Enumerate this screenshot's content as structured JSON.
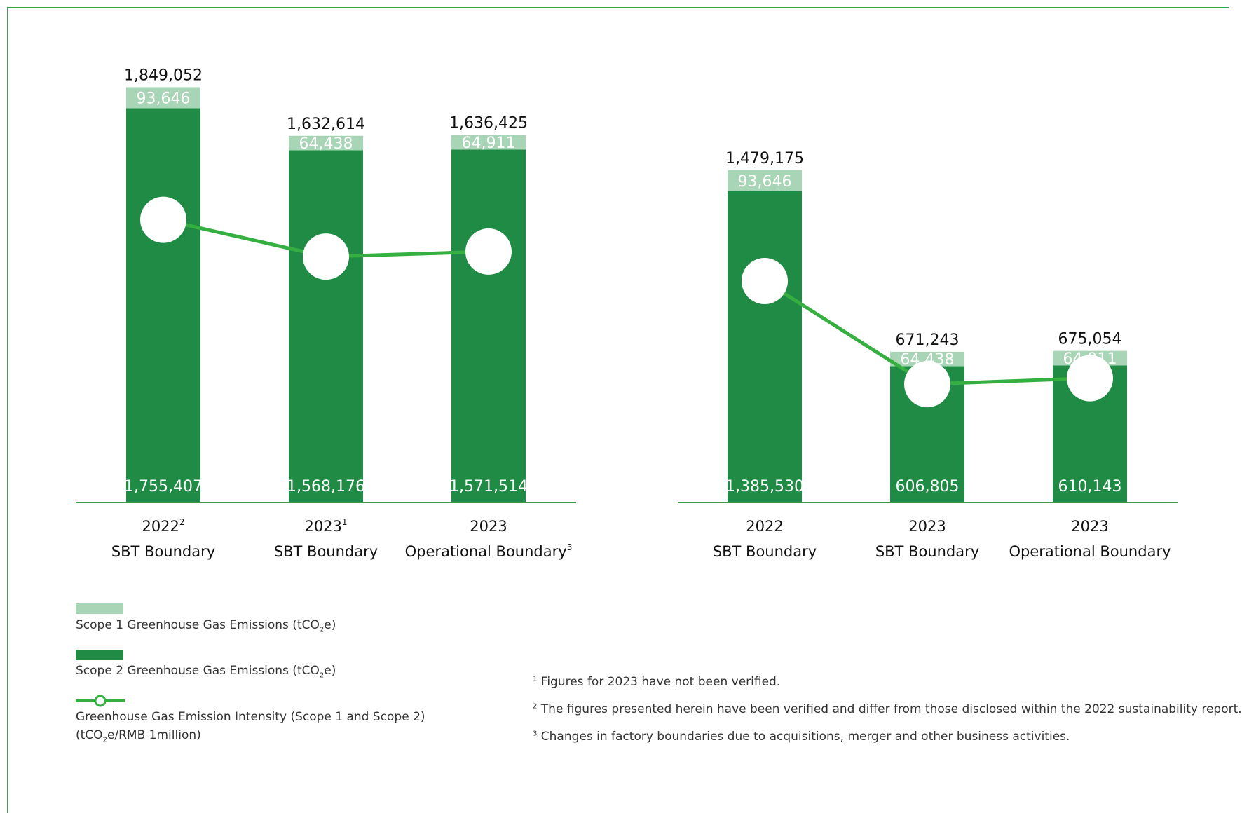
{
  "legend": {
    "scope1": {
      "pre": "Scope 1 Greenhouse Gas Emissions (tCO",
      "sub": "2",
      "post": "e)"
    },
    "scope2": {
      "pre": "Scope 2 Greenhouse Gas Emissions (tCO",
      "sub": "2",
      "post": "e)"
    },
    "intensity_line1": "Greenhouse Gas Emission Intensity (Scope 1 and Scope 2)",
    "intensity_line2": {
      "pre": "(tCO",
      "sub": "2",
      "post": "e/RMB 1million)"
    }
  },
  "footnotes": [
    {
      "mark": "1",
      "text": "Figures for 2023 have not been verified."
    },
    {
      "mark": "2",
      "text": "The figures presented herein have been verified and differ from those disclosed within the 2022 sustainability report."
    },
    {
      "mark": "3",
      "text": "Changes in factory boundaries due to acquisitions, merger and other business activities."
    }
  ],
  "colors": {
    "scope1": "#a8d5b5",
    "scope2": "#208b45",
    "intensity": "#35b040",
    "axis": "#3a9a4a"
  },
  "chart_data": [
    {
      "type": "bar",
      "stacked": true,
      "categories": [
        {
          "line1": "2022",
          "sup1": "2",
          "line2": "SBT Boundary",
          "sup2": ""
        },
        {
          "line1": "2023",
          "sup1": "1",
          "line2": "SBT Boundary",
          "sup2": ""
        },
        {
          "line1": "2023",
          "sup1": "",
          "line2": "Operational Boundary",
          "sup2": "3"
        }
      ],
      "totals": [
        "1,849,052",
        "1,632,614",
        "1,636,425"
      ],
      "series": [
        {
          "name": "Scope 2 Greenhouse Gas Emissions (tCO2e)",
          "values": [
            1755407,
            1568176,
            1571514
          ],
          "labels": [
            "1,755,407",
            "1,568,176",
            "1,571,514"
          ]
        },
        {
          "name": "Scope 1 Greenhouse Gas Emissions (tCO2e)",
          "values": [
            93646,
            64438,
            64911
          ],
          "labels": [
            "93,646",
            "64,438",
            "64,911"
          ]
        }
      ],
      "ylim": [
        0,
        2050000
      ],
      "intensity_line": {
        "name": "Greenhouse Gas Emission Intensity (Scope 1 and Scope 2) (tCO2e/RMB 1million)",
        "relative_levels": [
          0.614,
          0.534,
          0.545
        ]
      }
    },
    {
      "type": "bar",
      "stacked": true,
      "categories": [
        {
          "line1": "2022",
          "sup1": "",
          "line2": "SBT Boundary",
          "sup2": ""
        },
        {
          "line1": "2023",
          "sup1": "",
          "line2": "SBT Boundary",
          "sup2": ""
        },
        {
          "line1": "2023",
          "sup1": "",
          "line2": "Operational Boundary",
          "sup2": ""
        }
      ],
      "totals": [
        "1,479,175",
        "671,243",
        "675,054"
      ],
      "series": [
        {
          "name": "Scope 2 Greenhouse Gas Emissions (tCO2e)",
          "values": [
            1385530,
            606805,
            610143
          ],
          "labels": [
            "1,385,530",
            "606,805",
            "610,143"
          ]
        },
        {
          "name": "Scope 1 Greenhouse Gas Emissions (tCO2e)",
          "values": [
            93646,
            64438,
            64911
          ],
          "labels": [
            "93,646",
            "64,438",
            "64,911"
          ]
        }
      ],
      "ylim": [
        0,
        2050000
      ],
      "intensity_line": {
        "name": "Greenhouse Gas Emission Intensity (Scope 1 and Scope 2) (tCO2e/RMB 1million)",
        "relative_levels": [
          0.481,
          0.257,
          0.27
        ]
      }
    }
  ]
}
